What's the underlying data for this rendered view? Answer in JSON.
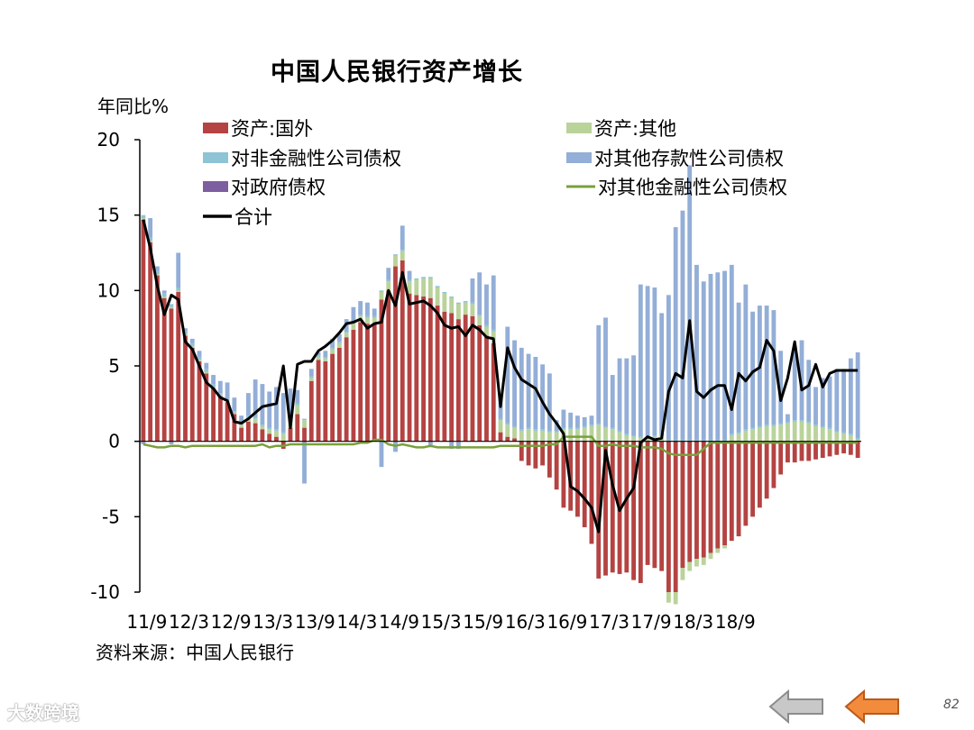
{
  "slide": {
    "title": "中国人民银行资产增长",
    "y_unit_label": "年同比%",
    "source": "资料来源：中国人民银行",
    "page_number": "82",
    "watermark": "大数跨境",
    "nav": {
      "back_icon": "left-arrow-gray",
      "prev_icon": "left-arrow-orange"
    }
  },
  "chart_data": {
    "type": "bar",
    "title": "中国人民银行资产增长",
    "ylabel": "年同比%",
    "ylim": [
      -10,
      20
    ],
    "yticks": [
      20,
      15,
      10,
      5,
      0,
      -5,
      -10
    ],
    "xtick_labels": [
      "11/9",
      "12/3",
      "12/9",
      "13/3",
      "13/9",
      "14/3",
      "14/9",
      "15/3",
      "15/9",
      "16/3",
      "16/9",
      "17/3",
      "17/9",
      "18/3",
      "18/9"
    ],
    "x_start": "2011-09",
    "legend_placement": "top",
    "colors": {
      "foreign": "#b44342",
      "other": "#b9d39a",
      "nonfin": "#8ec4d6",
      "odc": "#93aed7",
      "gov": "#7e5ea0",
      "ofc": "#79a03c",
      "total": "#000000"
    },
    "series": [
      {
        "name": "资产:国外",
        "kind": "bar",
        "values": [
          14.7,
          13.2,
          11.0,
          9.5,
          8.8,
          9.9,
          7.0,
          6.2,
          5.3,
          4.5,
          3.5,
          3.0,
          2.6,
          1.8,
          0.9,
          1.3,
          1.2,
          0.8,
          0.5,
          0.3,
          -0.5,
          0.9,
          1.8,
          0.9,
          4.0,
          5.4,
          5.3,
          5.8,
          6.2,
          6.9,
          7.4,
          7.9,
          7.8,
          7.8,
          9.4,
          10.0,
          11.6,
          12.0,
          9.8,
          9.7,
          9.6,
          9.5,
          9.0,
          8.6,
          8.5,
          8.1,
          8.4,
          8.3,
          7.7,
          7.0,
          6.5,
          0.6,
          0.3,
          0.2,
          -1.3,
          -1.6,
          -1.8,
          -1.6,
          -2.4,
          -3.2,
          -4.4,
          -4.6,
          -5.0,
          -5.7,
          -6.8,
          -9.1,
          -8.9,
          -8.7,
          -8.8,
          -8.7,
          -9.2,
          -9.4,
          -8.2,
          -8.4,
          -8.6,
          -10.0,
          -10.0,
          -8.4,
          -8.0,
          -7.8,
          -7.7,
          -7.4,
          -7.1,
          -6.9,
          -6.6,
          -6.3,
          -5.6,
          -5.0,
          -4.4,
          -3.8,
          -3.1,
          -2.2,
          -1.4,
          -1.4,
          -1.3,
          -1.3,
          -1.2,
          -1.1,
          -1.0,
          -0.9,
          -0.8,
          -0.9,
          -1.1
        ]
      },
      {
        "name": "资产:其他",
        "kind": "bar",
        "values": [
          0.1,
          0.1,
          0.1,
          0.1,
          0.1,
          0.1,
          0.1,
          0.1,
          0.1,
          0.1,
          0.1,
          0.1,
          0.1,
          0.1,
          0.2,
          0.3,
          0.3,
          0.2,
          0.3,
          0.4,
          0.5,
          0.5,
          0.6,
          0.5,
          0.2,
          0.2,
          0.2,
          0.3,
          0.3,
          0.3,
          0.4,
          0.4,
          0.4,
          0.4,
          0.5,
          0.6,
          0.7,
          0.6,
          0.8,
          1.0,
          1.2,
          1.3,
          1.2,
          1.2,
          1.0,
          1.0,
          0.8,
          0.8,
          0.6,
          0.6,
          0.8,
          0.8,
          0.8,
          0.7,
          0.7,
          0.8,
          0.7,
          0.7,
          0.6,
          0.6,
          0.8,
          0.8,
          0.8,
          0.9,
          1.0,
          1.1,
          0.9,
          0.8,
          0.6,
          0.4,
          0.3,
          0.2,
          0.2,
          0.3,
          0.4,
          -0.7,
          -0.8,
          -0.8,
          -0.6,
          -0.5,
          -0.5,
          -0.4,
          -0.3,
          -0.2,
          0.4,
          0.5,
          0.7,
          0.8,
          0.9,
          1.0,
          1.0,
          1.1,
          1.2,
          1.3,
          1.3,
          1.2,
          1.0,
          0.9,
          0.8,
          0.6,
          0.5,
          0.4,
          0.1
        ]
      },
      {
        "name": "对非金融性公司债权",
        "kind": "bar",
        "values": [
          0.2,
          0.2,
          0.2,
          0.2,
          0.2,
          0.2,
          0.2,
          0.2,
          0.2,
          0.2,
          0.2,
          0.1,
          0.1,
          0.1,
          0.1,
          0.1,
          0.1,
          0.1,
          0.1,
          0.1,
          0.1,
          0.1,
          0.1,
          0.1,
          0.1,
          0.1,
          0.1,
          0.1,
          0.1,
          0.1,
          0.1,
          0.1,
          0.1,
          0.1,
          0.1,
          0.1,
          0.1,
          0.1,
          0.1,
          0.1,
          0.1,
          0.1,
          0.1,
          0.1,
          0.1,
          0.1,
          0.1,
          0.1,
          0.1,
          0.1,
          0.1,
          0.1,
          0.1,
          0.1,
          0.1,
          0.1,
          0.1,
          0.1,
          0.1,
          0.1,
          0.1,
          0.1,
          0.1,
          0.1,
          0.1,
          0.1,
          0.1,
          0.1,
          0.1,
          0.1,
          0.1,
          0.1,
          0.1,
          0.1,
          0.1,
          0.1,
          0.1,
          0.1,
          0.1,
          0.1,
          0.1,
          0.1,
          0.1,
          0.1,
          0.1,
          0.1,
          0.1,
          0.1,
          0.1,
          0.1,
          0.1,
          0.1,
          0.1,
          0.1,
          0.1,
          0.1,
          0.1,
          0.1,
          0.1,
          0.1,
          0.1,
          0.1,
          0.1
        ]
      },
      {
        "name": "对其他存款性公司债权",
        "kind": "bar",
        "values": [
          -0.2,
          1.3,
          0.3,
          0.2,
          -0.2,
          2.3,
          0.2,
          0.3,
          0.4,
          0.4,
          0.6,
          0.8,
          1.1,
          0.9,
          0.5,
          1.5,
          2.5,
          2.7,
          2.4,
          2.8,
          2.6,
          2.0,
          0.9,
          -2.8,
          0.5,
          0.2,
          0.4,
          0.6,
          0.5,
          0.8,
          1.0,
          0.9,
          0.9,
          0.5,
          -1.7,
          0.8,
          -0.7,
          1.6,
          0.6,
          0.0,
          0.0,
          -0.4,
          0.0,
          0.0,
          -0.5,
          -0.5,
          0.0,
          1.6,
          2.8,
          2.7,
          3.6,
          1.4,
          6.4,
          5.7,
          5.4,
          4.9,
          4.8,
          4.3,
          3.8,
          0.7,
          1.2,
          1.0,
          0.8,
          0.6,
          0.6,
          6.5,
          7.2,
          3.5,
          4.8,
          5.0,
          5.3,
          10.1,
          10.0,
          9.8,
          8.0,
          9.6,
          14.1,
          15.2,
          18.2,
          11.6,
          10.5,
          11.0,
          11.1,
          11.2,
          11.2,
          8.6,
          9.6,
          7.7,
          8.0,
          7.9,
          7.6,
          4.8,
          0.5,
          4.9,
          5.3,
          4.1,
          2.5,
          3.2,
          3.4,
          4.1,
          4.2,
          5.0,
          5.7
        ]
      },
      {
        "name": "对政府债权",
        "kind": "bar",
        "values": [
          0,
          0,
          0,
          0,
          0,
          0,
          0,
          0,
          0,
          0,
          0,
          0,
          0,
          0,
          0,
          0,
          0,
          0,
          0,
          0,
          0,
          0,
          0,
          0,
          0,
          0,
          0,
          0,
          0,
          0,
          0,
          0,
          0,
          0,
          0,
          0,
          0,
          0,
          0,
          0,
          0,
          0,
          0,
          0,
          0,
          0,
          0,
          0,
          0,
          0,
          0,
          0,
          0,
          0,
          0,
          0,
          0,
          0,
          0,
          0,
          0,
          0,
          0,
          0,
          0,
          0,
          0,
          0,
          0,
          0,
          0,
          0,
          0,
          0,
          0,
          0,
          0,
          0,
          0,
          0,
          0,
          0,
          0,
          0,
          0,
          0,
          0,
          0,
          0,
          0,
          0,
          0,
          0,
          0,
          0,
          0,
          0,
          0,
          0,
          0,
          0,
          0,
          0
        ]
      },
      {
        "name": "对其他金融性公司债权",
        "kind": "line",
        "values": [
          -0.2,
          -0.3,
          -0.4,
          -0.4,
          -0.3,
          -0.3,
          -0.4,
          -0.3,
          -0.3,
          -0.3,
          -0.3,
          -0.3,
          -0.3,
          -0.3,
          -0.3,
          -0.3,
          -0.3,
          -0.2,
          -0.4,
          -0.3,
          -0.3,
          -0.2,
          -0.2,
          -0.2,
          -0.2,
          -0.2,
          -0.2,
          -0.2,
          -0.2,
          -0.2,
          -0.2,
          -0.1,
          -0.1,
          0.1,
          0.1,
          -0.2,
          -0.3,
          -0.2,
          -0.3,
          -0.4,
          -0.4,
          -0.3,
          -0.4,
          -0.4,
          -0.4,
          -0.4,
          -0.4,
          -0.4,
          -0.4,
          -0.4,
          -0.4,
          -0.3,
          -0.3,
          -0.3,
          -0.3,
          -0.3,
          -0.3,
          -0.3,
          -0.2,
          -0.2,
          0.3,
          0.3,
          0.3,
          0.3,
          0.3,
          -0.3,
          -0.3,
          -0.2,
          -0.3,
          -0.3,
          -0.3,
          -0.4,
          -0.4,
          -0.4,
          -0.5,
          -0.8,
          -0.9,
          -0.9,
          -0.9,
          -0.9,
          -0.5,
          -0.1,
          -0.1,
          -0.1,
          -0.1,
          -0.1,
          -0.1,
          -0.1,
          -0.1,
          -0.1,
          -0.1,
          -0.1,
          -0.1,
          -0.1,
          -0.1,
          -0.1,
          -0.1,
          -0.1,
          -0.1,
          -0.1,
          -0.1,
          -0.1,
          -0.1
        ]
      },
      {
        "name": "合计",
        "kind": "line",
        "values": [
          14.7,
          12.8,
          10.3,
          8.4,
          9.7,
          9.4,
          6.6,
          6.1,
          5.0,
          3.9,
          3.5,
          2.9,
          2.7,
          1.3,
          1.2,
          1.5,
          1.9,
          2.3,
          2.4,
          2.5,
          5.0,
          0.9,
          5.1,
          5.3,
          5.3,
          6.0,
          6.3,
          6.7,
          7.2,
          7.8,
          7.9,
          8.1,
          7.5,
          7.8,
          7.9,
          10.0,
          9.0,
          11.2,
          9.1,
          9.2,
          9.3,
          9.0,
          8.5,
          7.7,
          7.5,
          7.6,
          7.0,
          7.7,
          7.4,
          6.9,
          6.8,
          2.3,
          6.2,
          4.9,
          4.1,
          3.8,
          3.5,
          2.6,
          1.8,
          1.2,
          0.5,
          -3.0,
          -3.3,
          -3.8,
          -4.4,
          -6.0,
          -0.6,
          -2.9,
          -4.6,
          -3.8,
          -3.1,
          -0.1,
          0.3,
          0.1,
          0.2,
          3.3,
          4.5,
          4.2,
          8.0,
          3.3,
          2.9,
          3.4,
          3.7,
          3.7,
          2.1,
          4.5,
          4.0,
          4.6,
          4.9,
          6.7,
          6.0,
          2.7,
          4.2,
          6.6,
          3.4,
          3.7,
          5.1,
          3.6,
          4.5,
          4.7,
          4.7,
          4.7,
          4.7
        ]
      }
    ]
  }
}
